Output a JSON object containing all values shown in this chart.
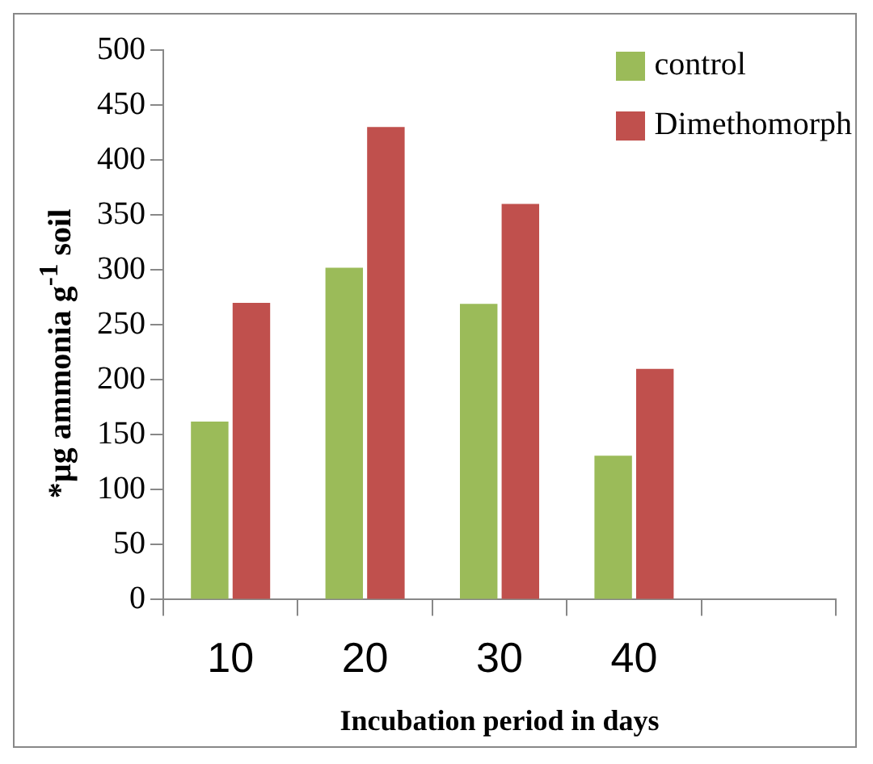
{
  "chart_data": {
    "type": "bar",
    "xlabel": "Incubation period in days",
    "ylabel": "*µg ammonia  g$^{-1}$ soil",
    "categories": [
      "10",
      "20",
      "30",
      "40",
      null
    ],
    "series": [
      {
        "name": "control",
        "color": "#9bbb59",
        "values": [
          162,
          302,
          269,
          131,
          null
        ]
      },
      {
        "name": "Dimethomorph",
        "color": "#c0504d",
        "values": [
          270,
          430,
          360,
          210,
          null
        ]
      }
    ],
    "ylim": [
      0,
      500
    ],
    "yticks": [
      0,
      50,
      100,
      150,
      200,
      250,
      300,
      350,
      400,
      450,
      500
    ],
    "grid": false,
    "legend": "top right"
  }
}
